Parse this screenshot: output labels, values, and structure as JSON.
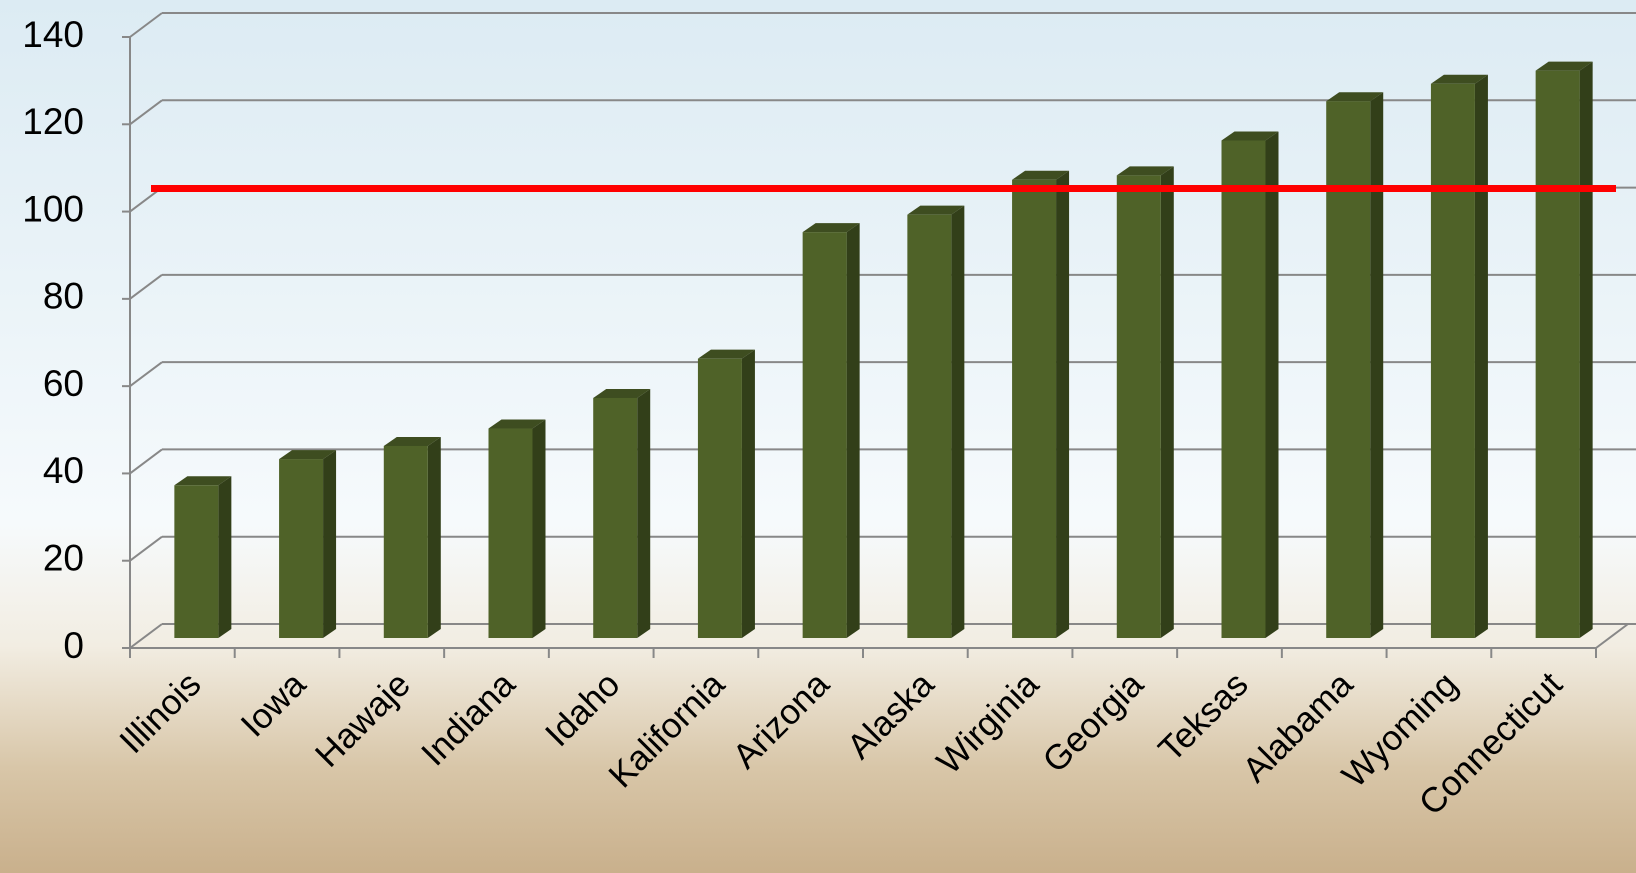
{
  "chart_data": {
    "type": "bar3d",
    "categories": [
      "Illinois",
      "Iowa",
      "Hawaje",
      "Indiana",
      "Idaho",
      "Kalifornia",
      "Arizona",
      "Alaska",
      "Wirginia",
      "Georgia",
      "Teksas",
      "Alabama",
      "Wyoming",
      "Connecticut"
    ],
    "values": [
      35,
      41,
      44,
      48,
      55,
      64,
      93,
      97,
      105,
      106,
      114,
      123,
      127,
      130
    ],
    "color": "#4f6228",
    "reference_line": {
      "value": 103,
      "color": "#ff0000"
    },
    "ylim": [
      0,
      140
    ],
    "yticks": [
      0,
      20,
      40,
      60,
      80,
      100,
      120,
      140
    ],
    "grid": true
  }
}
